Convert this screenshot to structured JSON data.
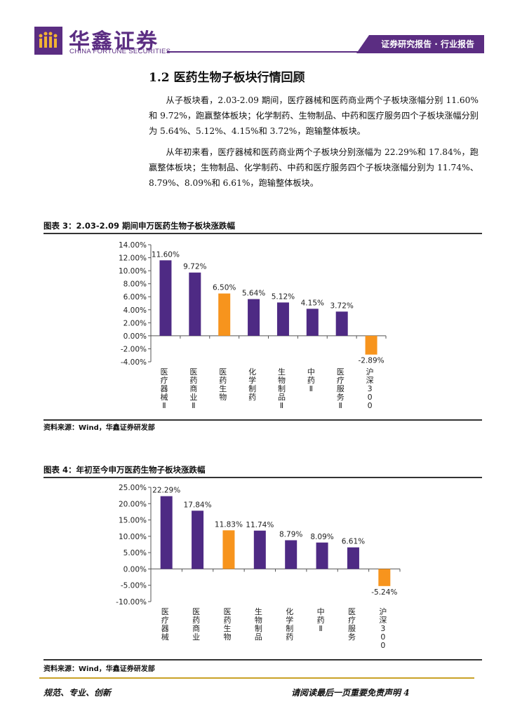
{
  "header": {
    "brand_cn": "华鑫证券",
    "brand_en": "CHINA FORTUNE SECURITIES",
    "tab_label": "证券研究报告 · 行业报告",
    "brand_color": "#5b2d82"
  },
  "section": {
    "title": "1.2 医药生物子板块行情回顾",
    "paragraphs": [
      "从子板块看，2.03-2.09 期间，医疗器械和医药商业两个子板块涨幅分别 11.60% 和 9.72%，跑赢整体板块；化学制药、生物制品、中药和医疗服务四个子板块涨幅分别为 5.64%、5.12%、4.15%和 3.72%，跑输整体板块。",
      "从年初来看，医疗器械和医药商业两个子板块分别涨幅为 22.29%和 17.84%，跑赢整体板块；生物制品、化学制药、中药和医疗服务四个子板块涨幅分别为 11.74%、8.79%、8.09%和 6.61%，跑输整体板块。"
    ]
  },
  "figures": [
    {
      "title": "图表 3：2.03-2.09 期间申万医药生物子板块涨跌幅",
      "source": "资料来源：Wind，华鑫证券研发部"
    },
    {
      "title": "图表 4：年初至今申万医药生物子板块涨跌幅",
      "source": "资料来源：Wind，华鑫证券研发部"
    }
  ],
  "chart_data": [
    {
      "type": "bar",
      "title": "",
      "categories": [
        "医疗器械Ⅱ",
        "医药商业Ⅱ",
        "医药生物",
        "化学制药",
        "生物制品Ⅱ",
        "中药Ⅱ",
        "医疗服务Ⅱ",
        "沪深300"
      ],
      "values": [
        11.6,
        9.72,
        6.5,
        5.64,
        5.12,
        4.15,
        3.72,
        -2.89
      ],
      "value_labels": [
        "11.60%",
        "9.72%",
        "6.50%",
        "5.64%",
        "5.12%",
        "4.15%",
        "3.72%",
        "-2.89%"
      ],
      "ylim": [
        -4,
        14
      ],
      "yticks": [
        -4,
        -2,
        0,
        2,
        4,
        6,
        8,
        10,
        12,
        14
      ],
      "ytick_labels": [
        "-4.00%",
        "-2.00%",
        "0.00%",
        "2.00%",
        "4.00%",
        "6.00%",
        "8.00%",
        "10.00%",
        "12.00%",
        "14.00%"
      ],
      "bar_colors": [
        "#4e2a84",
        "#4e2a84",
        "#f7941d",
        "#4e2a84",
        "#4e2a84",
        "#4e2a84",
        "#4e2a84",
        "#f7941d"
      ],
      "grid": false
    },
    {
      "type": "bar",
      "title": "",
      "categories": [
        "医疗器械",
        "医药商业",
        "医药生物",
        "生物制品",
        "化学制药",
        "中药Ⅱ",
        "医疗服务",
        "沪深300"
      ],
      "values": [
        22.29,
        17.84,
        11.83,
        11.74,
        8.79,
        8.09,
        6.61,
        -5.24
      ],
      "value_labels": [
        "22.29%",
        "17.84%",
        "11.83%",
        "11.74%",
        "8.79%",
        "8.09%",
        "6.61%",
        "-5.24%"
      ],
      "ylim": [
        -10,
        25
      ],
      "yticks": [
        -10,
        -5,
        0,
        5,
        10,
        15,
        20,
        25
      ],
      "ytick_labels": [
        "-10.00%",
        "-5.00%",
        "0.00%",
        "5.00%",
        "10.00%",
        "15.00%",
        "20.00%",
        "25.00%"
      ],
      "bar_colors": [
        "#4e2a84",
        "#4e2a84",
        "#f7941d",
        "#4e2a84",
        "#4e2a84",
        "#4e2a84",
        "#4e2a84",
        "#f7941d"
      ],
      "grid": false
    }
  ],
  "footer": {
    "left": "规范、专业、创新",
    "right": "请阅读最后一页重要免责声明 4"
  }
}
